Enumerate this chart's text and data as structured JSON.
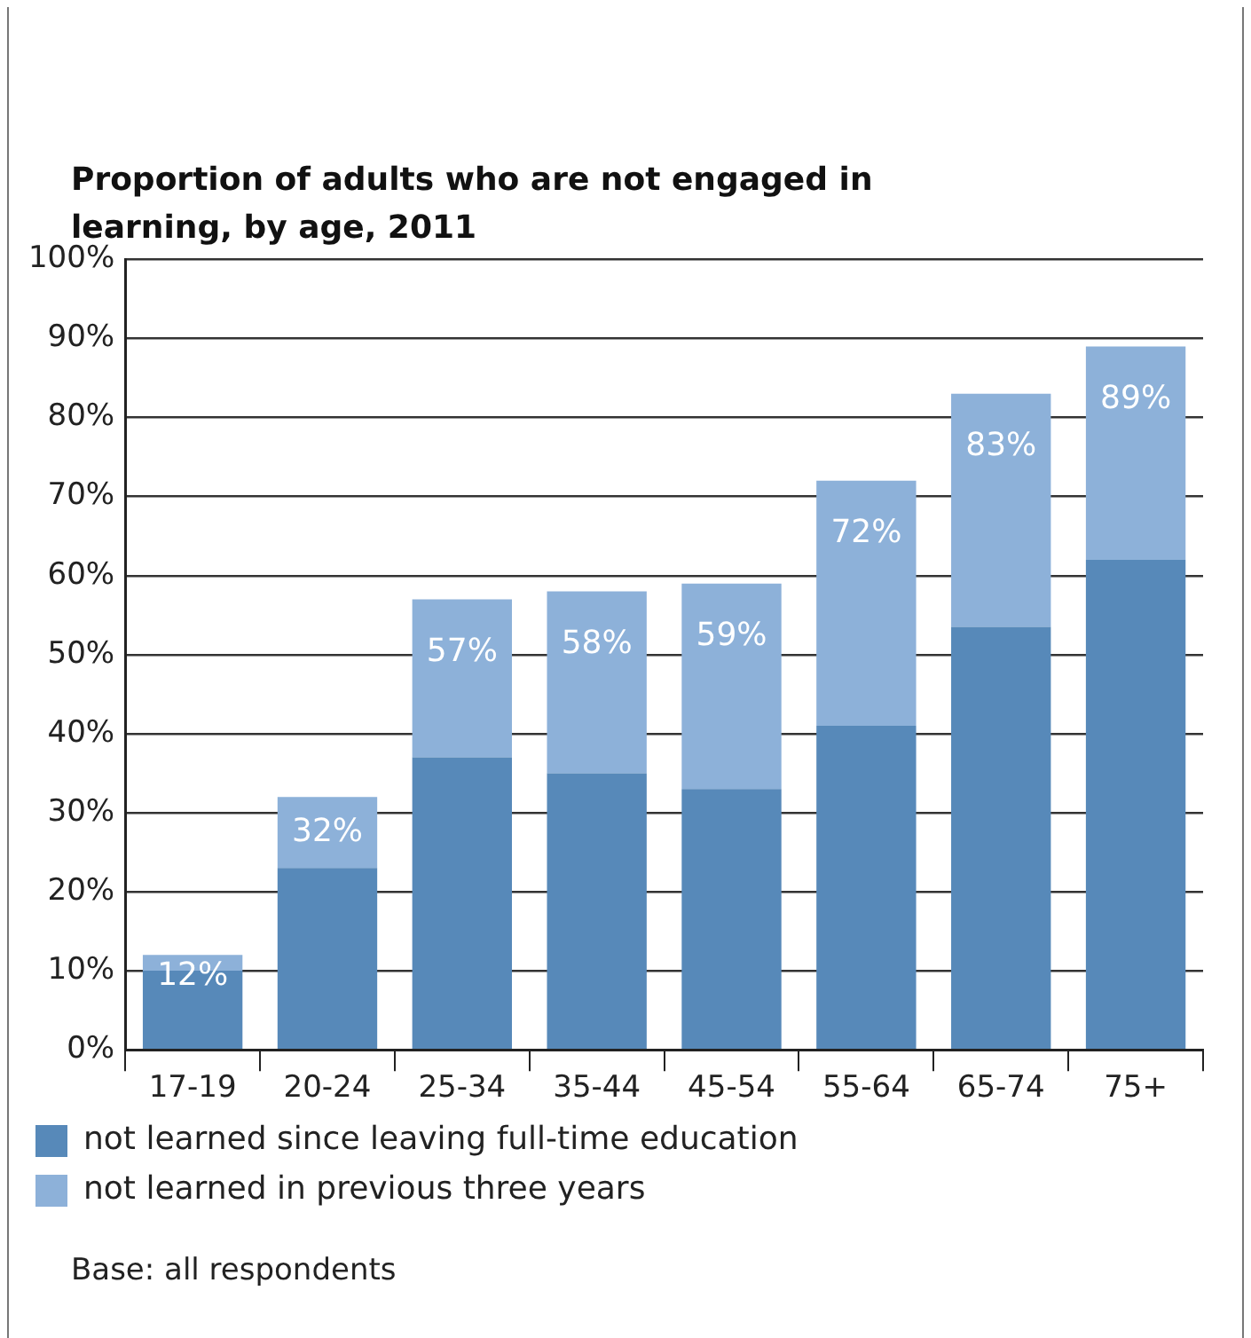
{
  "chart_data": {
    "type": "bar",
    "title": "Proportion of adults who are not engaged in learning, by age, 2011",
    "categories": [
      "17-19",
      "20-24",
      "25-34",
      "35-44",
      "45-54",
      "55-64",
      "65-74",
      "75+"
    ],
    "stacked": true,
    "series": [
      {
        "name": "not learned since leaving full-time education",
        "color": "#5789b9",
        "values": [
          10,
          23,
          37,
          35,
          33,
          41,
          53.5,
          62
        ]
      },
      {
        "name": "not learned in previous three years",
        "color": "#8db1d9",
        "values": [
          2,
          9,
          20,
          23,
          26,
          31,
          29.5,
          27
        ]
      }
    ],
    "totals": [
      "12%",
      "32%",
      "57%",
      "58%",
      "59%",
      "72%",
      "83%",
      "89%"
    ],
    "ylim": [
      0,
      100
    ],
    "yticks": [
      {
        "value": 0,
        "label": "0%"
      },
      {
        "value": 10,
        "label": "10%"
      },
      {
        "value": 20,
        "label": "20%"
      },
      {
        "value": 30,
        "label": "30%"
      },
      {
        "value": 40,
        "label": "40%"
      },
      {
        "value": 50,
        "label": "50%"
      },
      {
        "value": 60,
        "label": "60%"
      },
      {
        "value": 70,
        "label": "70%"
      },
      {
        "value": 80,
        "label": "80%"
      },
      {
        "value": 90,
        "label": "90%"
      },
      {
        "value": 100,
        "label": "100%"
      }
    ],
    "grid": "y",
    "legend": "bottom",
    "annotations": [
      "Base: all respondents"
    ]
  }
}
